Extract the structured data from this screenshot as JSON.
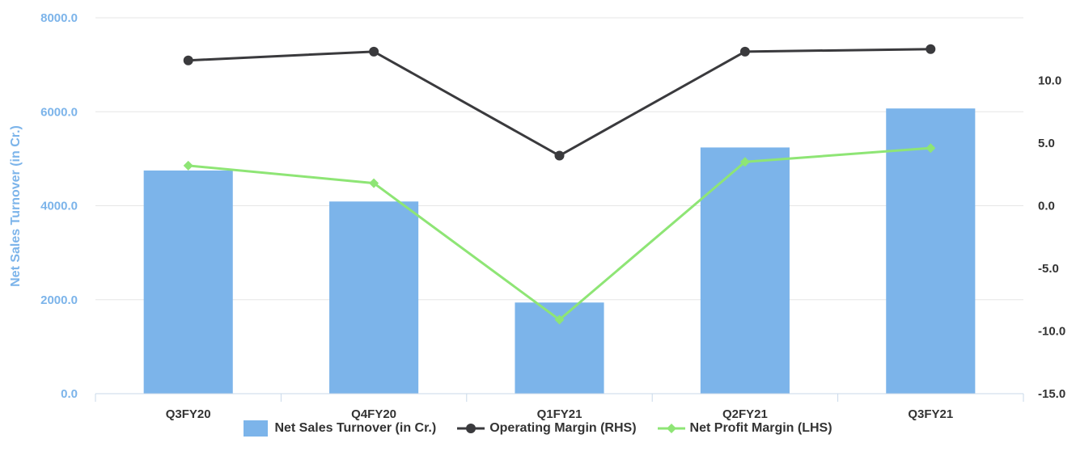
{
  "chart_data": {
    "type": "bar",
    "categories": [
      "Q3FY20",
      "Q4FY20",
      "Q1FY21",
      "Q2FY21",
      "Q3FY21"
    ],
    "ylabel": "Net Sales Turnover (in Cr.)",
    "ylim_left": [
      0,
      8000
    ],
    "left_ticks": [
      "0.0",
      "2000.0",
      "4000.0",
      "6000.0",
      "8000.0"
    ],
    "left_tick_values": [
      0,
      2000,
      4000,
      6000,
      8000
    ],
    "ylim_right": [
      -15,
      15
    ],
    "right_ticks": [
      "-15.0",
      "-10.0",
      "-5.0",
      "0.0",
      "5.0",
      "10.0"
    ],
    "right_tick_values": [
      -15,
      -10,
      -5,
      0,
      5,
      10
    ],
    "grid": "horizontal",
    "legend_position": "bottom",
    "series": [
      {
        "name": "Net Sales Turnover (in Cr.)",
        "type": "bar",
        "axis": "left",
        "color": "#7cb4ea",
        "values": [
          4750,
          4090,
          1940,
          5240,
          6070
        ]
      },
      {
        "name": "Operating Margin (RHS)",
        "type": "line",
        "axis": "right",
        "marker": "circle",
        "color": "#3a3a3d",
        "values": [
          11.6,
          12.3,
          4.0,
          12.3,
          12.5
        ]
      },
      {
        "name": "Net Profit Margin (LHS)",
        "type": "line",
        "axis": "right",
        "marker": "diamond",
        "color": "#8ee575",
        "values": [
          3.2,
          1.8,
          -9.1,
          3.5,
          4.6
        ]
      }
    ]
  }
}
